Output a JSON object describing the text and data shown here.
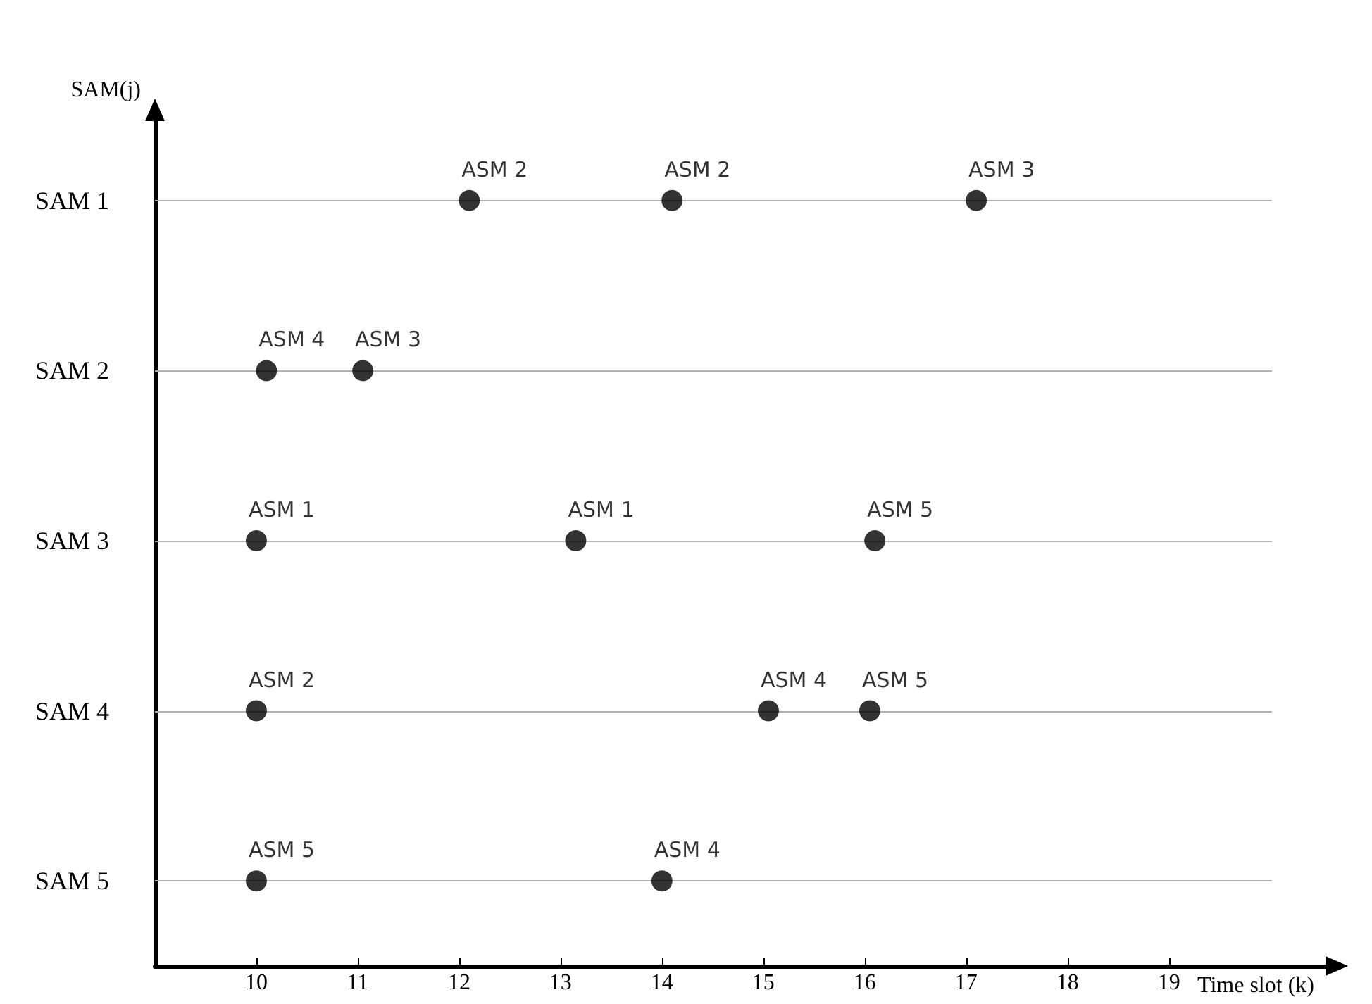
{
  "chart_data": {
    "type": "scatter",
    "orientation": "horizontal",
    "xlabel": "Time slot (k)",
    "ylabel": "SAM(j)",
    "categories": [
      "SAM 1",
      "SAM 2",
      "SAM 3",
      "SAM 4",
      "SAM 5"
    ],
    "xlim": [
      9,
      20.6
    ],
    "xticks": [
      10,
      11,
      12,
      13,
      14,
      15,
      16,
      17,
      18,
      19
    ],
    "grid": "y",
    "marker": "circle",
    "series": [
      {
        "color": "#000000",
        "values": [
          12.1,
          10.1,
          10,
          10,
          10
        ],
        "value_labels": [
          "ASM 2",
          "ASM 4",
          "ASM 1",
          "ASM 2",
          "ASM 5"
        ]
      },
      {
        "color": "#000000",
        "values": [
          14.1,
          11.05,
          13.15,
          15.05,
          14
        ],
        "value_labels": [
          "ASM 2",
          "ASM 3",
          "ASM 1",
          "ASM 4",
          "ASM 4"
        ]
      },
      {
        "color": "#000000",
        "values": [
          17.1,
          null,
          16.1,
          16.05,
          null
        ],
        "value_labels": [
          "ASM 3",
          null,
          "ASM 5",
          "ASM 5",
          null
        ]
      }
    ]
  }
}
